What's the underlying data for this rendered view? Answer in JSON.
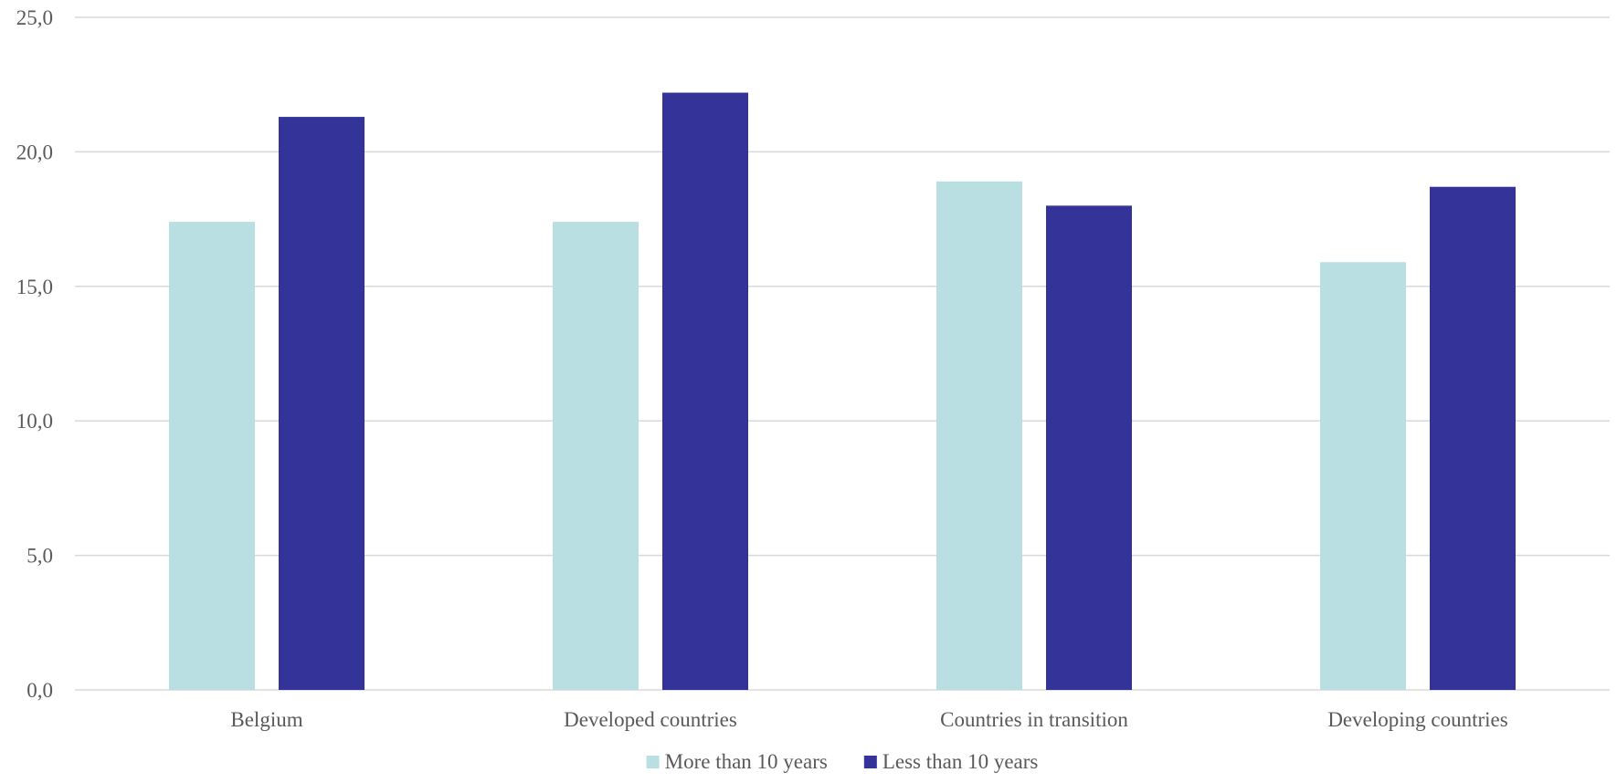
{
  "chart_data": {
    "type": "bar",
    "categories": [
      "Belgium",
      "Developed countries",
      "Countries in transition",
      "Developing countries"
    ],
    "series": [
      {
        "name": "More than 10 years",
        "color": "#b9dfe3",
        "values": [
          17.4,
          17.4,
          18.9,
          15.9
        ]
      },
      {
        "name": "Less than 10 years",
        "color": "#333399",
        "values": [
          21.3,
          22.2,
          18.0,
          18.7
        ]
      }
    ],
    "ylim": [
      0,
      25
    ],
    "yticks": [
      "0,0",
      "5,0",
      "10,0",
      "15,0",
      "20,0",
      "25,0"
    ],
    "grid": true,
    "legend_position": "bottom",
    "title": "",
    "xlabel": "",
    "ylabel": ""
  }
}
